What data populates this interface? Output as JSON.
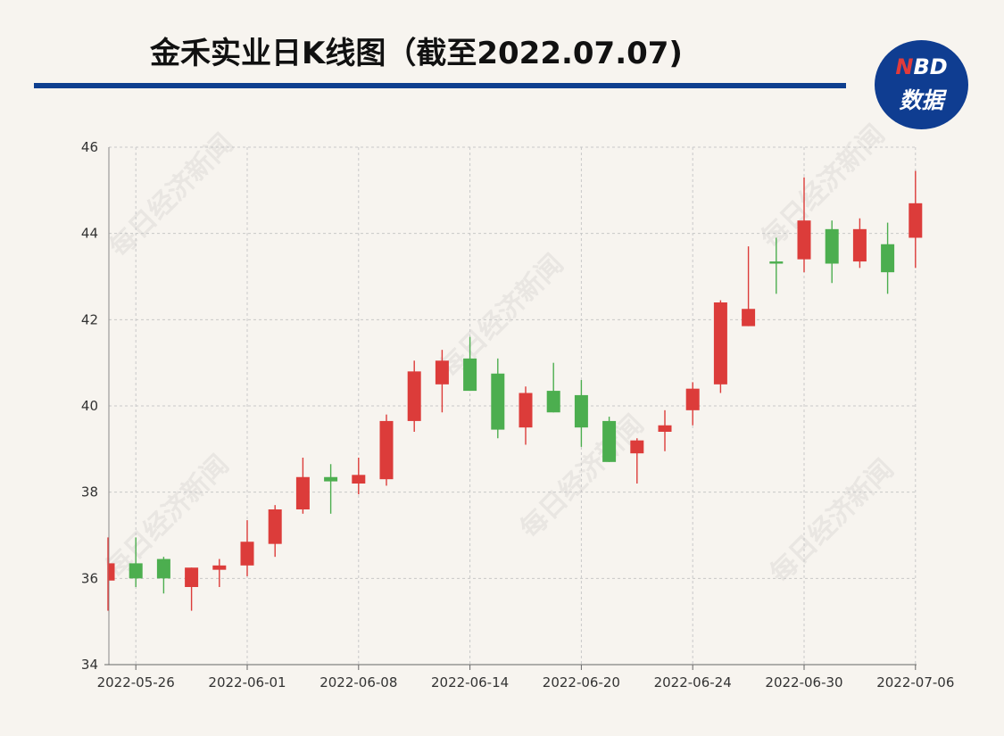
{
  "title": "金禾实业日K线图（截至2022.07.07)",
  "logo": {
    "line1_n": "N",
    "line1_rest": "BD",
    "line2": "数据"
  },
  "watermark": "每日经济新闻",
  "colors": {
    "up": "#dc3c3a",
    "down": "#4cae4f",
    "rule": "#0e3f8f",
    "grid": "#c8c8c8"
  },
  "chart_data": {
    "type": "candlestick",
    "title": "金禾实业日K线图（截至2022.07.07)",
    "ylim": [
      34,
      46
    ],
    "yticks": [
      34,
      36,
      38,
      40,
      42,
      44,
      46
    ],
    "grid": true,
    "x_tick_labels": [
      "2022-05-26",
      "2022-06-01",
      "2022-06-08",
      "2022-06-14",
      "2022-06-20",
      "2022-06-24",
      "2022-06-30",
      "2022-07-06"
    ],
    "x_tick_index": [
      1,
      5,
      9,
      13,
      17,
      21,
      25,
      29
    ],
    "candles": [
      {
        "open": 35.95,
        "close": 36.35,
        "high": 36.95,
        "low": 35.25
      },
      {
        "open": 36.35,
        "close": 36.0,
        "high": 36.95,
        "low": 35.8
      },
      {
        "open": 36.45,
        "close": 36.0,
        "high": 36.5,
        "low": 35.65
      },
      {
        "open": 35.8,
        "close": 36.25,
        "high": 36.25,
        "low": 35.25
      },
      {
        "open": 36.2,
        "close": 36.3,
        "high": 36.45,
        "low": 35.8
      },
      {
        "open": 36.3,
        "close": 36.85,
        "high": 37.35,
        "low": 36.05
      },
      {
        "open": 36.8,
        "close": 37.6,
        "high": 37.7,
        "low": 36.5
      },
      {
        "open": 37.6,
        "close": 38.35,
        "high": 38.8,
        "low": 37.5
      },
      {
        "open": 38.35,
        "close": 38.25,
        "high": 38.65,
        "low": 37.5
      },
      {
        "open": 38.2,
        "close": 38.4,
        "high": 38.8,
        "low": 37.95
      },
      {
        "open": 38.3,
        "close": 39.65,
        "high": 39.8,
        "low": 38.15
      },
      {
        "open": 39.65,
        "close": 40.8,
        "high": 41.05,
        "low": 39.4
      },
      {
        "open": 40.5,
        "close": 41.05,
        "high": 41.3,
        "low": 39.85
      },
      {
        "open": 41.1,
        "close": 40.35,
        "high": 41.6,
        "low": 40.35
      },
      {
        "open": 40.75,
        "close": 39.45,
        "high": 41.1,
        "low": 39.25
      },
      {
        "open": 39.5,
        "close": 40.3,
        "high": 40.45,
        "low": 39.1
      },
      {
        "open": 40.35,
        "close": 39.85,
        "high": 41.0,
        "low": 39.85
      },
      {
        "open": 40.25,
        "close": 39.5,
        "high": 40.6,
        "low": 39.05
      },
      {
        "open": 39.65,
        "close": 38.7,
        "high": 39.75,
        "low": 38.7
      },
      {
        "open": 38.9,
        "close": 39.2,
        "high": 39.25,
        "low": 38.2
      },
      {
        "open": 39.4,
        "close": 39.55,
        "high": 39.9,
        "low": 38.95
      },
      {
        "open": 39.9,
        "close": 40.4,
        "high": 40.55,
        "low": 39.55
      },
      {
        "open": 40.5,
        "close": 42.4,
        "high": 42.45,
        "low": 40.3
      },
      {
        "open": 41.85,
        "close": 42.25,
        "high": 43.7,
        "low": 41.85
      },
      {
        "open": 43.35,
        "close": 43.3,
        "high": 43.9,
        "low": 42.6
      },
      {
        "open": 43.4,
        "close": 44.3,
        "high": 45.3,
        "low": 43.1
      },
      {
        "open": 44.1,
        "close": 43.3,
        "high": 44.3,
        "low": 42.85
      },
      {
        "open": 43.35,
        "close": 44.1,
        "high": 44.35,
        "low": 43.2
      },
      {
        "open": 43.75,
        "close": 43.1,
        "high": 44.25,
        "low": 42.6
      },
      {
        "open": 43.9,
        "close": 44.7,
        "high": 45.45,
        "low": 43.2
      }
    ]
  }
}
